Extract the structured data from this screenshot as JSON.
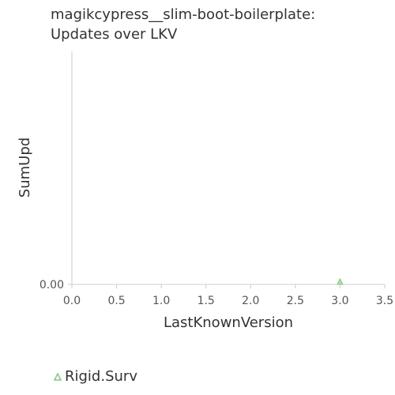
{
  "title_lines": [
    "magikcypress__slim-boot-boilerplate:",
    "Updates over LKV"
  ],
  "chart_data": {
    "type": "scatter",
    "title": "magikcypress__slim-boot-boilerplate: Updates over LKV",
    "xlabel": "LastKnownVersion",
    "ylabel": "SumUpd",
    "xlim": [
      0,
      3.5
    ],
    "x_ticks": [
      "0.0",
      "0.5",
      "1.0",
      "1.5",
      "2.0",
      "2.5",
      "3.0",
      "3.5"
    ],
    "y_ticks": [
      "0.00"
    ],
    "grid": false,
    "legend_position": "bottom-left",
    "series": [
      {
        "name": "Rigid.Surv",
        "marker": "triangle",
        "color": "#7fc97f",
        "points": [
          {
            "x": 3.0,
            "y": 0.0
          }
        ]
      }
    ]
  }
}
